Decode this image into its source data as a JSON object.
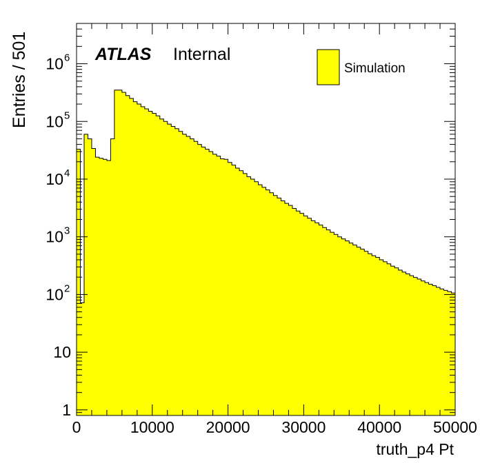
{
  "chart_data": {
    "type": "histogram",
    "ylabel": "Entries / 501",
    "xlabel": "truth_p4 Pt",
    "xlim": [
      0,
      50000
    ],
    "ylim": [
      0.8,
      5000000
    ],
    "yscale": "log",
    "x_tick_labels": [
      "0",
      "10000",
      "20000",
      "30000",
      "40000",
      "50000"
    ],
    "y_tick_labels": [
      {
        "base": "1",
        "exp": ""
      },
      {
        "base": "10",
        "exp": ""
      },
      {
        "base": "10",
        "exp": "2"
      },
      {
        "base": "10",
        "exp": "3"
      },
      {
        "base": "10",
        "exp": "4"
      },
      {
        "base": "10",
        "exp": "5"
      },
      {
        "base": "10",
        "exp": "6"
      }
    ],
    "bin_width": 501,
    "series": [
      {
        "name": "Simulation",
        "color": "#ffff00",
        "values": [
          33000,
          72,
          60000,
          50000,
          34000,
          24000,
          23000,
          22000,
          21000,
          50000,
          350000,
          350000,
          320000,
          280000,
          250000,
          220000,
          200000,
          180000,
          165000,
          150000,
          138000,
          125000,
          110000,
          100000,
          90000,
          82000,
          75000,
          67000,
          60000,
          55000,
          50000,
          45000,
          40000,
          36000,
          33000,
          30000,
          27000,
          25000,
          22500,
          22000,
          19500,
          17500,
          15500,
          14000,
          12500,
          11000,
          10000,
          9000,
          8000,
          7200,
          6500,
          5800,
          5200,
          4700,
          4200,
          3800,
          3500,
          3100,
          2800,
          2550,
          2300,
          2100,
          1900,
          1750,
          1600,
          1450,
          1320,
          1200,
          1100,
          1000,
          920,
          850,
          780,
          720,
          660,
          610,
          560,
          510,
          470,
          440,
          400,
          370,
          340,
          310,
          290,
          265,
          245,
          228,
          212,
          198,
          185,
          172,
          161,
          151,
          142,
          133,
          125,
          118,
          112,
          106
        ]
      }
    ],
    "annotations": {
      "atlas": "ATLAS",
      "internal": "Internal"
    },
    "legend": {
      "position": "top-right",
      "label": "Simulation"
    }
  }
}
